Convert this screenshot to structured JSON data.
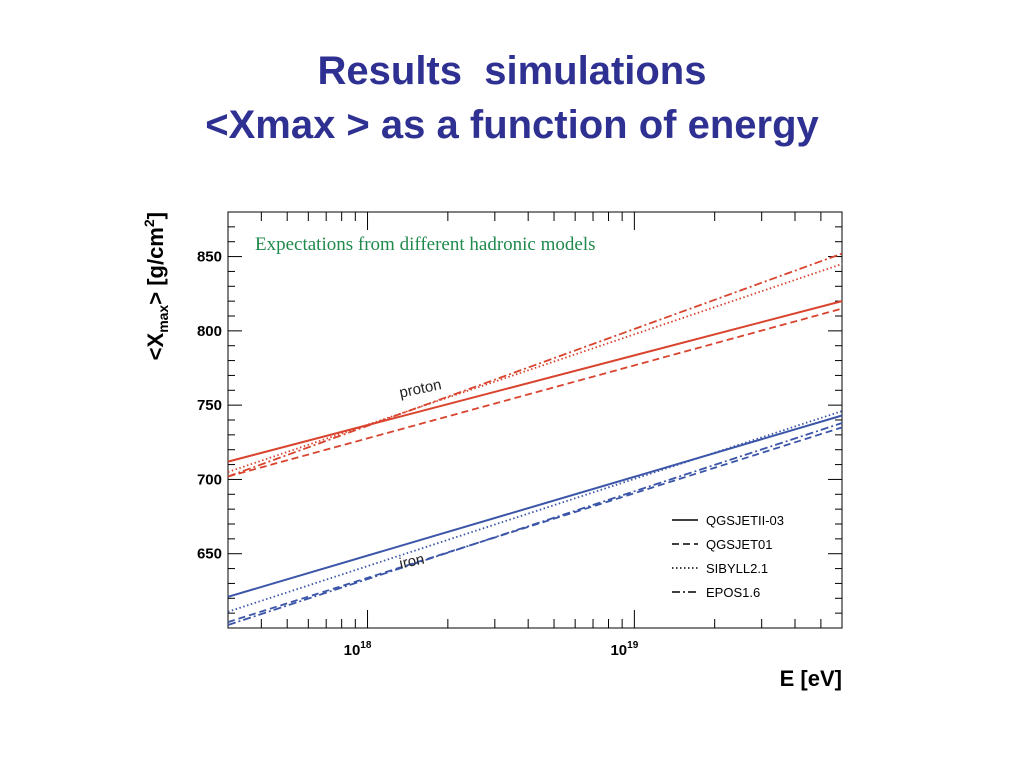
{
  "slide": {
    "title_line1": "Results  simulations",
    "title_line2": "<Xmax > as a function of energy"
  },
  "chart_data": {
    "type": "line",
    "xscale": "log",
    "xlim": [
      3e+17,
      6e+19
    ],
    "ylim": [
      600,
      880
    ],
    "grid": false,
    "legend_position": "bottom-right",
    "annotation": "Expectations from different hadronic models",
    "xlabel": "E [eV]",
    "ylabel": "<X_max> [g/cm^2]",
    "ylabel_parts": {
      "main": "<X",
      "sub": "max",
      "mid": "> [g/cm",
      "sup": "2",
      "end": "]"
    },
    "yticks": [
      650,
      700,
      750,
      800,
      850
    ],
    "xticks": [
      {
        "value": 1e+18,
        "base": "10",
        "exp": "18"
      },
      {
        "value": 1e+19,
        "base": "10",
        "exp": "19"
      }
    ],
    "curve_labels": [
      {
        "text": "proton",
        "x": 1.1e+18,
        "y": 755
      },
      {
        "text": "iron",
        "x": 1.1e+18,
        "y": 640
      }
    ],
    "colors": {
      "proton": "#d9442e",
      "iron": "#3b55a8",
      "annotation": "#1f8a4c",
      "title": "#2f3192"
    },
    "legend": [
      {
        "name": "QGSJETII-03",
        "style": "solid"
      },
      {
        "name": "QGSJET01",
        "style": "dashed"
      },
      {
        "name": "SIBYLL2.1",
        "style": "dotted"
      },
      {
        "name": "EPOS1.6",
        "style": "dashdot"
      }
    ],
    "series": [
      {
        "name": "QGSJETII-03",
        "group": "proton",
        "style": "solid",
        "x": [
          3e+17,
          6e+19
        ],
        "y": [
          712,
          820
        ]
      },
      {
        "name": "QGSJET01",
        "group": "proton",
        "style": "dashed",
        "x": [
          3e+17,
          6e+19
        ],
        "y": [
          702,
          815
        ]
      },
      {
        "name": "SIBYLL2.1",
        "group": "proton",
        "style": "dotted",
        "x": [
          3e+17,
          6e+19
        ],
        "y": [
          705,
          845
        ]
      },
      {
        "name": "EPOS1.6",
        "group": "proton",
        "style": "dashdot",
        "x": [
          3e+17,
          6e+19
        ],
        "y": [
          702,
          852
        ]
      },
      {
        "name": "QGSJETII-03",
        "group": "iron",
        "style": "solid",
        "x": [
          3e+17,
          6e+19
        ],
        "y": [
          621,
          743
        ]
      },
      {
        "name": "QGSJET01",
        "group": "iron",
        "style": "dashed",
        "x": [
          3e+17,
          6e+19
        ],
        "y": [
          604,
          735
        ]
      },
      {
        "name": "SIBYLL2.1",
        "group": "iron",
        "style": "dotted",
        "x": [
          3e+17,
          6e+19
        ],
        "y": [
          611,
          746
        ]
      },
      {
        "name": "EPOS1.6",
        "group": "iron",
        "style": "dashdot",
        "x": [
          3e+17,
          6e+19
        ],
        "y": [
          602,
          738
        ]
      }
    ]
  }
}
